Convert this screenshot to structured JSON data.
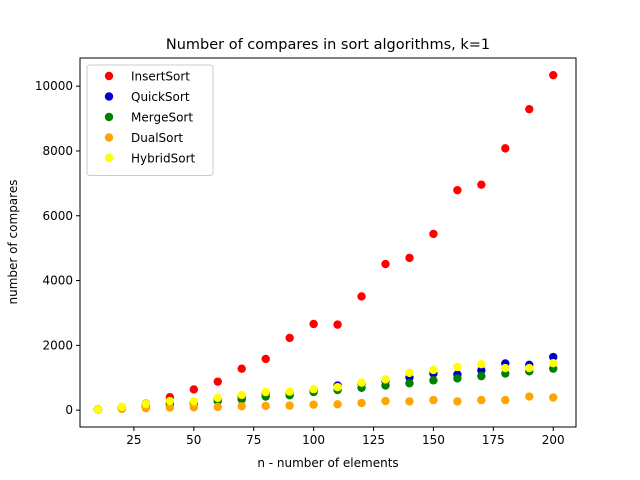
{
  "chart_data": {
    "type": "scatter",
    "title": "Number of compares in sort algorithms, k=1",
    "xlabel": "n - number of elements",
    "ylabel": "number of compares",
    "xlim": [
      2.5,
      209.5
    ],
    "ylim": [
      -520,
      10870
    ],
    "xticks": [
      25,
      50,
      75,
      100,
      125,
      150,
      175,
      200
    ],
    "yticks": [
      0,
      2000,
      4000,
      6000,
      8000,
      10000
    ],
    "grid": false,
    "legend_position": "top-left",
    "x": [
      10,
      20,
      30,
      40,
      50,
      60,
      70,
      80,
      90,
      100,
      110,
      120,
      130,
      140,
      150,
      160,
      170,
      180,
      190,
      200
    ],
    "series": [
      {
        "name": "InsertSort",
        "color": "#ff0000",
        "values": [
          20,
          95,
          200,
          400,
          640,
          880,
          1280,
          1580,
          2230,
          2660,
          2640,
          3510,
          4510,
          4700,
          5440,
          6790,
          6960,
          8080,
          9290,
          10340
        ]
      },
      {
        "name": "QuickSort",
        "color": "#0000cd",
        "values": [
          20,
          70,
          140,
          230,
          250,
          330,
          410,
          510,
          550,
          620,
          760,
          820,
          900,
          1010,
          1130,
          1100,
          1230,
          1440,
          1400,
          1640
        ]
      },
      {
        "name": "MergeSort",
        "color": "#008000",
        "values": [
          20,
          60,
          110,
          180,
          200,
          280,
          330,
          420,
          460,
          560,
          620,
          690,
          760,
          830,
          920,
          980,
          1050,
          1130,
          1200,
          1280
        ]
      },
      {
        "name": "DualSort",
        "color": "#ffa500",
        "values": [
          20,
          40,
          60,
          80,
          90,
          100,
          120,
          130,
          140,
          170,
          180,
          220,
          280,
          270,
          310,
          270,
          310,
          310,
          420,
          390
        ]
      },
      {
        "name": "HybridSort",
        "color": "#ffff00",
        "values": [
          20,
          100,
          190,
          280,
          270,
          380,
          470,
          560,
          570,
          650,
          710,
          850,
          950,
          1150,
          1240,
          1330,
          1420,
          1300,
          1300,
          1450
        ]
      }
    ]
  }
}
